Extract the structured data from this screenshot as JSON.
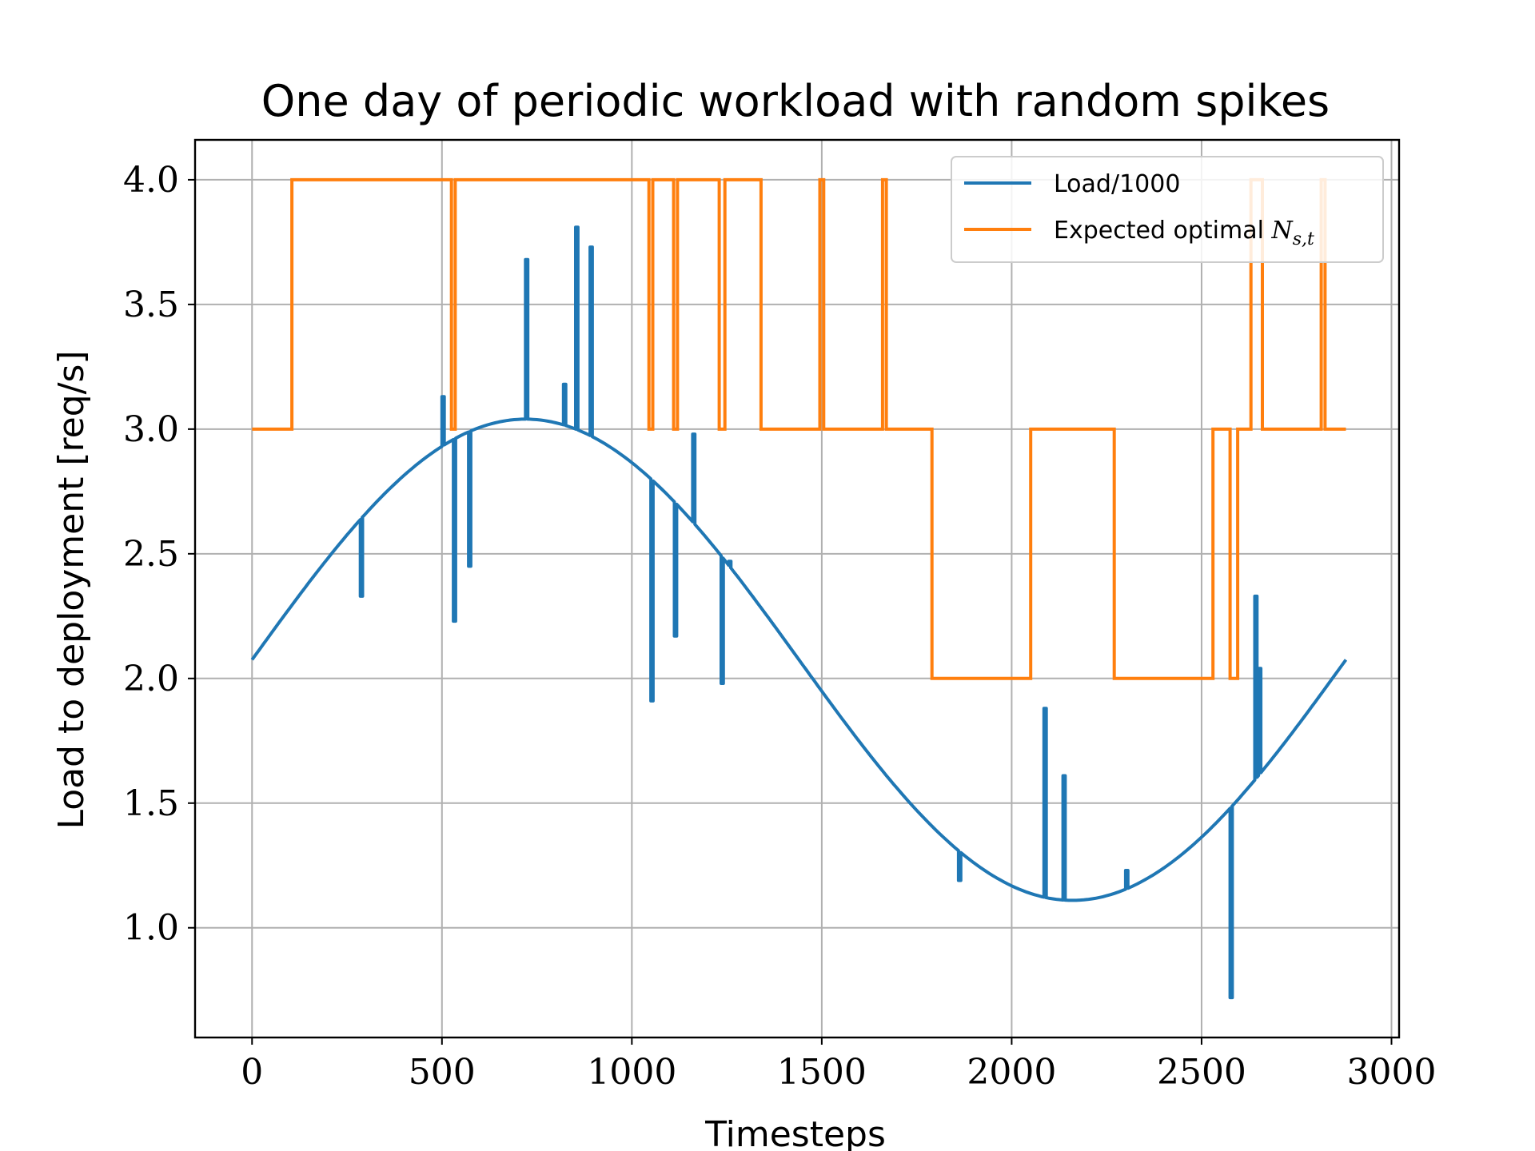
{
  "chart_data": {
    "type": "line",
    "title": "One day of periodic workload with random spikes",
    "xlabel": "Timesteps",
    "ylabel": "Load to deployment [req/s]",
    "xlim": [
      -150,
      3020
    ],
    "ylim": [
      0.56,
      4.16
    ],
    "xticks": [
      0,
      500,
      1000,
      1500,
      2000,
      2500,
      3000
    ],
    "yticks": [
      1.0,
      1.5,
      2.0,
      2.5,
      3.0,
      3.5,
      4.0
    ],
    "xtick_labels": [
      "0",
      "500",
      "1000",
      "1500",
      "2000",
      "2500",
      "3000"
    ],
    "ytick_labels": [
      "1.0",
      "1.5",
      "2.0",
      "2.5",
      "3.0",
      "3.5",
      "4.0"
    ],
    "grid": true,
    "legend_position": "top-right",
    "series": [
      {
        "name": "Load/1000",
        "color": "#1f77b4",
        "baseline": {
          "offset": 2.075,
          "amplitude": 0.965,
          "period": 2880,
          "phase": 0
        },
        "x_range": [
          0,
          2880
        ],
        "spikes": [
          {
            "x": 285,
            "y": 2.33
          },
          {
            "x": 500,
            "y": 3.13
          },
          {
            "x": 530,
            "y": 2.23
          },
          {
            "x": 570,
            "y": 2.45
          },
          {
            "x": 720,
            "y": 3.68
          },
          {
            "x": 820,
            "y": 3.18
          },
          {
            "x": 852,
            "y": 3.81
          },
          {
            "x": 890,
            "y": 3.73
          },
          {
            "x": 1050,
            "y": 1.91
          },
          {
            "x": 1112,
            "y": 2.17
          },
          {
            "x": 1160,
            "y": 2.98
          },
          {
            "x": 1235,
            "y": 1.98
          },
          {
            "x": 1255,
            "y": 2.47
          },
          {
            "x": 1860,
            "y": 1.19
          },
          {
            "x": 2085,
            "y": 1.88
          },
          {
            "x": 2135,
            "y": 1.61
          },
          {
            "x": 2300,
            "y": 1.23
          },
          {
            "x": 2575,
            "y": 0.72
          },
          {
            "x": 2640,
            "y": 2.33
          },
          {
            "x": 2650,
            "y": 2.04
          }
        ]
      },
      {
        "name": "Expected optimal N_{s,t}",
        "color": "#ff7f0e",
        "steps": [
          [
            0,
            3
          ],
          [
            105,
            4
          ],
          [
            525,
            3
          ],
          [
            535,
            4
          ],
          [
            1045,
            3
          ],
          [
            1055,
            4
          ],
          [
            1110,
            3
          ],
          [
            1120,
            4
          ],
          [
            1230,
            3
          ],
          [
            1245,
            4
          ],
          [
            1340,
            3
          ],
          [
            1495,
            4
          ],
          [
            1505,
            3
          ],
          [
            1660,
            4
          ],
          [
            1670,
            3
          ],
          [
            1790,
            2
          ],
          [
            2050,
            3
          ],
          [
            2270,
            2
          ],
          [
            2530,
            3
          ],
          [
            2575,
            2
          ],
          [
            2595,
            3
          ],
          [
            2630,
            4
          ],
          [
            2660,
            3
          ],
          [
            2815,
            4
          ],
          [
            2825,
            3
          ],
          [
            2880,
            3
          ]
        ]
      }
    ]
  },
  "legend": {
    "load_label": "Load/1000",
    "optimal_label_prefix": "Expected optimal ",
    "optimal_label_var": "N",
    "optimal_label_sub": "s,t"
  }
}
